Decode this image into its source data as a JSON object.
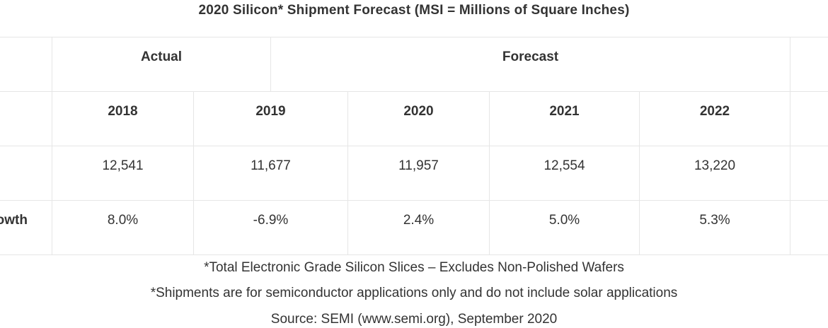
{
  "table": {
    "title": "2020 Silicon* Shipment Forecast (MSI = Millions of Square Inches)",
    "group_headers": {
      "actual": "Actual",
      "forecast": "Forecast"
    },
    "years": [
      "2018",
      "2019",
      "2020",
      "2021",
      "2022"
    ],
    "rows": [
      {
        "label": "",
        "values": [
          "12,541",
          "11,677",
          "11,957",
          "12,554",
          "13,220"
        ]
      },
      {
        "label": "owth",
        "values": [
          "8.0%",
          "-6.9%",
          "2.4%",
          "5.0%",
          "5.3%"
        ]
      }
    ]
  },
  "footnotes": {
    "line1": "*Total Electronic Grade Silicon Slices – Excludes Non-Polished Wafers",
    "line2": "*Shipments are for semiconductor applications only and do not include solar applications",
    "source": "Source: SEMI (www.semi.org), September 2020"
  }
}
